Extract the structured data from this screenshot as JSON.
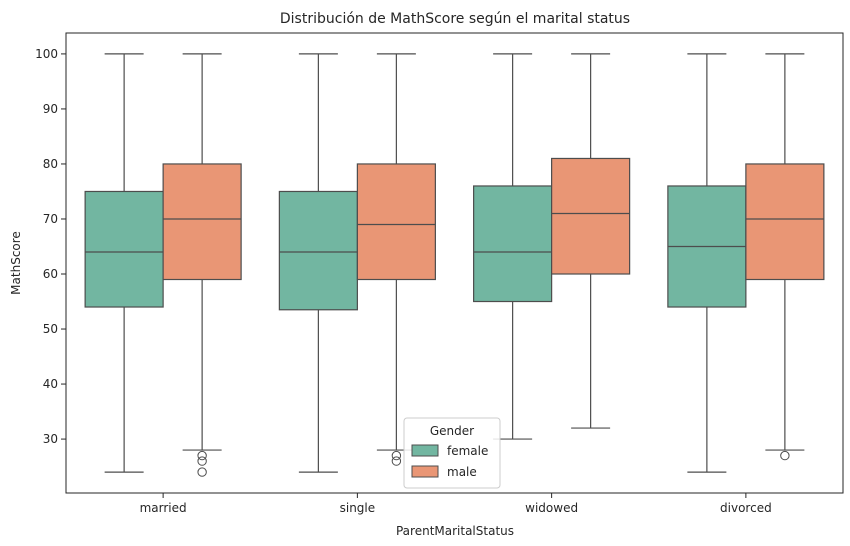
{
  "chart_data": {
    "type": "box",
    "title": "Distribución de MathScore según el marital status",
    "xlabel": "ParentMaritalStatus",
    "ylabel": "MathScore",
    "ylim": [
      20.2,
      103.8
    ],
    "yticks": [
      30,
      40,
      50,
      60,
      70,
      80,
      90,
      100
    ],
    "categories": [
      "married",
      "single",
      "widowed",
      "divorced"
    ],
    "legend": {
      "title": "Gender",
      "placement": "bottom-center"
    },
    "grid": false,
    "series": [
      {
        "name": "female",
        "color": "#72b6a1",
        "boxes": [
          {
            "whislo": 24,
            "q1": 54,
            "med": 64,
            "q3": 75,
            "whishi": 100,
            "fliers": []
          },
          {
            "whislo": 24,
            "q1": 53.5,
            "med": 64,
            "q3": 75,
            "whishi": 100,
            "fliers": []
          },
          {
            "whislo": 30,
            "q1": 55,
            "med": 64,
            "q3": 76,
            "whishi": 100,
            "fliers": []
          },
          {
            "whislo": 24,
            "q1": 54,
            "med": 65,
            "q3": 76,
            "whishi": 100,
            "fliers": []
          }
        ]
      },
      {
        "name": "male",
        "color": "#e99675",
        "boxes": [
          {
            "whislo": 28,
            "q1": 59,
            "med": 70,
            "q3": 80,
            "whishi": 100,
            "fliers": [
              27,
              26,
              24
            ]
          },
          {
            "whislo": 28,
            "q1": 59,
            "med": 69,
            "q3": 80,
            "whishi": 100,
            "fliers": [
              27,
              26
            ]
          },
          {
            "whislo": 32,
            "q1": 60,
            "med": 71,
            "q3": 81,
            "whishi": 100,
            "fliers": []
          },
          {
            "whislo": 28,
            "q1": 59,
            "med": 70,
            "q3": 80,
            "whishi": 100,
            "fliers": [
              27
            ]
          }
        ]
      }
    ],
    "line_color": "#4d4d4d"
  }
}
